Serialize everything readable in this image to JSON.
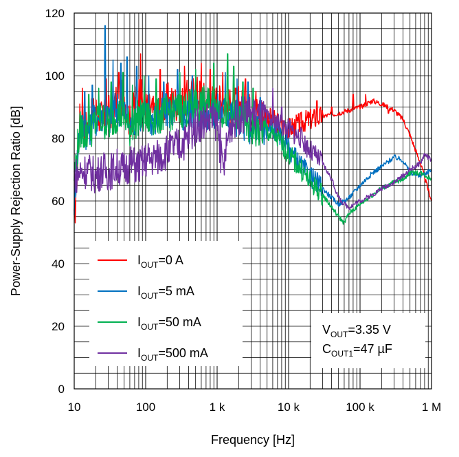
{
  "chart_data": {
    "type": "line",
    "xlabel": "Frequency [Hz]",
    "ylabel": "Power-Supply Rejection Ratio [dB]",
    "xscale": "log",
    "xlim": [
      10,
      1000000
    ],
    "ylim": [
      0,
      120
    ],
    "x_ticks": [
      {
        "value": 10,
        "label": "10"
      },
      {
        "value": 100,
        "label": "100"
      },
      {
        "value": 1000,
        "label": "1 k"
      },
      {
        "value": 10000,
        "label": "10 k"
      },
      {
        "value": 100000,
        "label": "100 k"
      },
      {
        "value": 1000000,
        "label": "1 M"
      }
    ],
    "y_ticks": [
      0,
      20,
      40,
      60,
      80,
      100,
      120
    ],
    "grid": true,
    "legend_position": "bottom-left",
    "series": [
      {
        "name": "IOUT=0 A",
        "label_main": "I",
        "label_sub": "OUT",
        "label_rest": "=0 A",
        "color": "#ff0000",
        "x": [
          10,
          12,
          15,
          20,
          25,
          30,
          40,
          50,
          60,
          80,
          100,
          150,
          200,
          300,
          500,
          700,
          1000,
          1500,
          2000,
          3000,
          5000,
          7000,
          10000,
          15000,
          20000,
          30000,
          50000,
          70000,
          100000,
          150000,
          200000,
          300000,
          400000,
          500000,
          700000,
          1000000
        ],
        "y": [
          52,
          86,
          84,
          89,
          86,
          88,
          91,
          94,
          85,
          95,
          90,
          87,
          92,
          91,
          95,
          92,
          92,
          90,
          91,
          89,
          87,
          85,
          83,
          85,
          86,
          87,
          88,
          89,
          90,
          92,
          91,
          89,
          86,
          81,
          72,
          60
        ],
        "spikes": [
          [
            13,
            96
          ],
          [
            28,
            99
          ],
          [
            42,
            101
          ],
          [
            85,
            107
          ],
          [
            160,
            102
          ],
          [
            350,
            103
          ],
          [
            600,
            104
          ],
          [
            800,
            102
          ],
          [
            1200,
            101
          ],
          [
            2500,
            99
          ],
          [
            3500,
            95
          ],
          [
            12000,
            80
          ],
          [
            25000,
            92
          ],
          [
            40000,
            90
          ],
          [
            80000,
            94
          ],
          [
            120000,
            94
          ],
          [
            250000,
            88
          ]
        ]
      },
      {
        "name": "IOUT=5 mA",
        "label_main": "I",
        "label_sub": "OUT",
        "label_rest": "=5 mA",
        "color": "#0070c0",
        "x": [
          10,
          12,
          15,
          20,
          25,
          30,
          40,
          50,
          60,
          80,
          100,
          150,
          200,
          300,
          500,
          700,
          1000,
          1500,
          2000,
          3000,
          5000,
          7000,
          10000,
          15000,
          20000,
          30000,
          40000,
          50000,
          60000,
          70000,
          100000,
          150000,
          200000,
          300000,
          400000,
          500000,
          700000,
          1000000
        ],
        "y": [
          60,
          84,
          82,
          86,
          88,
          86,
          90,
          89,
          84,
          88,
          87,
          86,
          89,
          87,
          89,
          88,
          89,
          88,
          86,
          84,
          83,
          82,
          77,
          71,
          68,
          64,
          61,
          59,
          60,
          61,
          65,
          69,
          71,
          74,
          73,
          69,
          68,
          70
        ],
        "spikes": [
          [
            14,
            95
          ],
          [
            18,
            97
          ],
          [
            27,
            116
          ],
          [
            35,
            105
          ],
          [
            45,
            104
          ],
          [
            55,
            106
          ],
          [
            75,
            103
          ],
          [
            110,
            100
          ],
          [
            180,
            98
          ],
          [
            280,
            102
          ],
          [
            450,
            100
          ],
          [
            1300,
            101
          ],
          [
            1900,
            99
          ],
          [
            2700,
            98
          ],
          [
            4000,
            93
          ]
        ]
      },
      {
        "name": "IOUT=50 mA",
        "label_main": "I",
        "label_sub": "OUT",
        "label_rest": "=50 mA",
        "color": "#00b050",
        "x": [
          10,
          12,
          15,
          20,
          25,
          30,
          40,
          50,
          60,
          80,
          100,
          150,
          200,
          300,
          500,
          700,
          1000,
          1500,
          2000,
          3000,
          5000,
          7000,
          10000,
          15000,
          20000,
          30000,
          40000,
          50000,
          60000,
          70000,
          100000,
          150000,
          200000,
          300000,
          400000,
          500000,
          700000,
          1000000
        ],
        "y": [
          68,
          83,
          81,
          85,
          86,
          84,
          88,
          87,
          83,
          87,
          86,
          87,
          88,
          89,
          90,
          91,
          90,
          88,
          86,
          83,
          82,
          80,
          75,
          70,
          66,
          62,
          58,
          55,
          53,
          56,
          59,
          62,
          64,
          66,
          67,
          69,
          69,
          67
        ],
        "spikes": [
          [
            16,
            94
          ],
          [
            22,
            96
          ],
          [
            33,
            98
          ],
          [
            48,
            101
          ],
          [
            65,
            97
          ],
          [
            95,
            100
          ],
          [
            140,
            99
          ],
          [
            300,
            101
          ],
          [
            500,
            102
          ],
          [
            900,
            104
          ],
          [
            1400,
            107
          ],
          [
            1700,
            103
          ],
          [
            2300,
            98
          ],
          [
            3200,
            96
          ]
        ]
      },
      {
        "name": "IOUT=500 mA",
        "label_main": "I",
        "label_sub": "OUT",
        "label_rest": "=500 mA",
        "color": "#7030a0",
        "x": [
          10,
          12,
          15,
          20,
          25,
          30,
          40,
          50,
          60,
          80,
          100,
          150,
          200,
          300,
          400,
          500,
          700,
          1000,
          1200,
          1500,
          2000,
          3000,
          5000,
          7000,
          10000,
          15000,
          20000,
          30000,
          40000,
          50000,
          60000,
          70000,
          100000,
          150000,
          200000,
          300000,
          400000,
          500000,
          700000,
          800000,
          1000000
        ],
        "y": [
          68,
          69,
          70,
          68,
          70,
          69,
          71,
          70,
          72,
          71,
          73,
          74,
          76,
          78,
          80,
          84,
          86,
          85,
          69,
          84,
          87,
          88,
          86,
          85,
          83,
          80,
          76,
          72,
          67,
          61,
          59,
          58,
          60,
          62,
          64,
          66,
          68,
          70,
          72,
          75,
          73
        ],
        "spikes": [
          [
            420,
            88
          ],
          [
            800,
            90
          ],
          [
            1100,
            92
          ],
          [
            2500,
            91
          ],
          [
            6000,
            96
          ],
          [
            8000,
            90
          ]
        ]
      }
    ],
    "annotation": {
      "line1_main": "V",
      "line1_sub": "OUT",
      "line1_rest": "=3.35 V",
      "line2_main": "C",
      "line2_sub": "OUT1",
      "line2_rest": "=47 µF"
    }
  }
}
